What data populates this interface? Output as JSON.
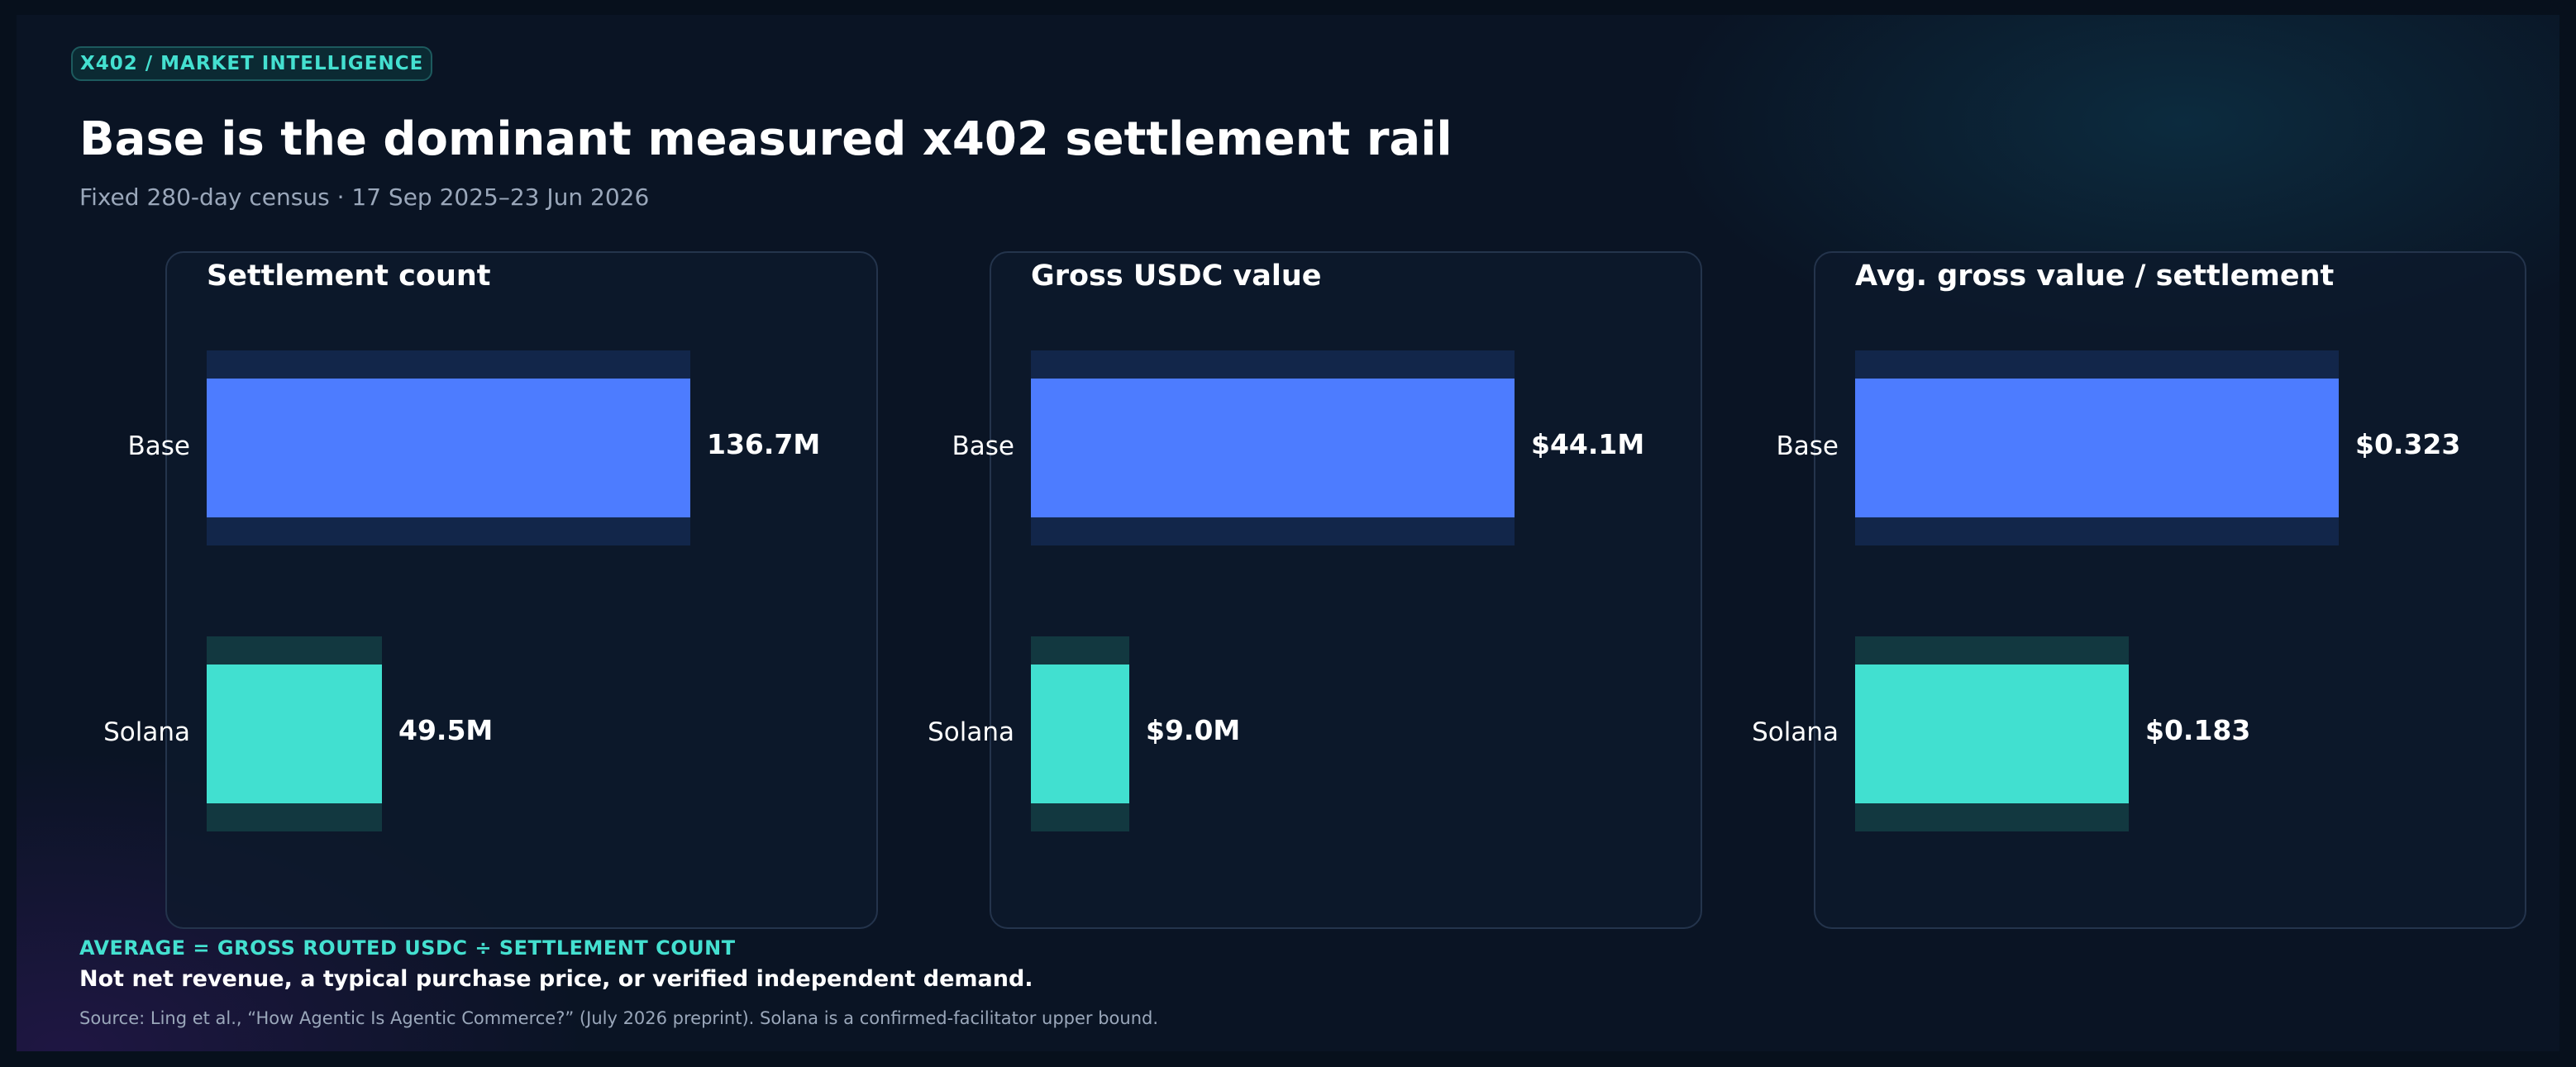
{
  "header": {
    "kicker": "X402  /  MARKET INTELLIGENCE",
    "title": "Base is the dominant measured x402 settlement rail",
    "subtitle": "Fixed 280-day census  ·  17 Sep 2025–23 Jun 2026"
  },
  "colors": {
    "base": "#4d7cff",
    "base_track": "#12264a",
    "solana": "#41e0d0",
    "solana_track": "#123840",
    "accent": "#44e0d0"
  },
  "chart_data": [
    {
      "type": "bar",
      "orientation": "horizontal",
      "title": "Settlement count",
      "categories": [
        "Base",
        "Solana"
      ],
      "values": [
        136.7,
        49.5
      ],
      "value_labels": [
        "136.7M",
        "49.5M"
      ],
      "unit": "M"
    },
    {
      "type": "bar",
      "orientation": "horizontal",
      "title": "Gross USDC value",
      "categories": [
        "Base",
        "Solana"
      ],
      "values": [
        44.1,
        9.0
      ],
      "value_labels": [
        "$44.1M",
        "$9.0M"
      ],
      "unit": "$M"
    },
    {
      "type": "bar",
      "orientation": "horizontal",
      "title": "Avg. gross value / settlement",
      "categories": [
        "Base",
        "Solana"
      ],
      "values": [
        0.323,
        0.183
      ],
      "value_labels": [
        "$0.323",
        "$0.183"
      ],
      "unit": "$"
    }
  ],
  "footnote": {
    "formula": "AVERAGE = GROSS ROUTED USDC ÷ SETTLEMENT COUNT",
    "warning": "Not net revenue, a typical purchase price, or verified independent demand.",
    "source": "Source: Ling et al., “How Agentic Is Agentic Commerce?” (July 2026 preprint). Solana is a confirmed-facilitator upper bound."
  }
}
